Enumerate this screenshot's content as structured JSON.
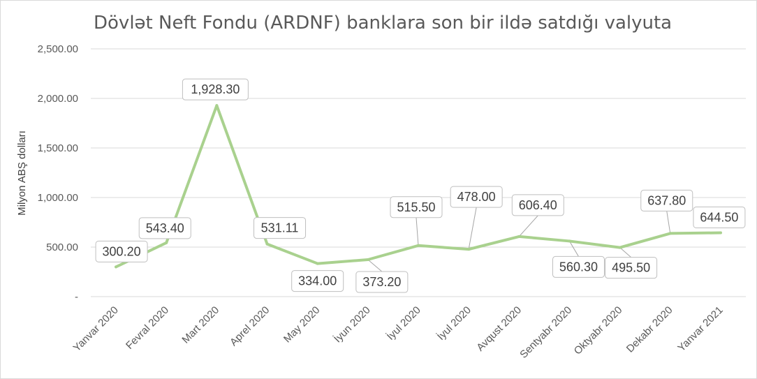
{
  "chart_data": {
    "type": "line",
    "title": "Dövlət Neft Fondu (ARDNF) banklara son bir ildə satdığı valyuta",
    "xlabel": "",
    "ylabel": "Milyon ABŞ dolları",
    "categories": [
      "Yanvar 2020",
      "Fevral 2020",
      "Mart 2020",
      "Aprel 2020",
      "May 2020",
      "İyun 2020",
      "İyul 2020",
      "İyul 2020",
      "Avqust 2020",
      "Sentyabr 2020",
      "Oktyabr 2020",
      "Dekabr 2020",
      "Yanvar 2021"
    ],
    "series": [
      {
        "values": [
          300.2,
          543.4,
          1928.3,
          531.11,
          334.0,
          373.2,
          515.5,
          478.0,
          606.4,
          560.3,
          495.5,
          637.8,
          644.5
        ],
        "color": "#a9d18e"
      }
    ],
    "data_labels": [
      "300.20",
      "543.40",
      "1,928.30",
      "531.11",
      "334.00",
      "373.20",
      "515.50",
      "478.00",
      "606.40",
      "560.30",
      "495.50",
      "637.80",
      "644.50"
    ],
    "ylim": [
      0,
      2500
    ],
    "yticks": [
      "-",
      "500.00",
      "1,000.00",
      "1,500.00",
      "2,000.00",
      "2,500.00"
    ],
    "grid": true,
    "legend": "none"
  }
}
